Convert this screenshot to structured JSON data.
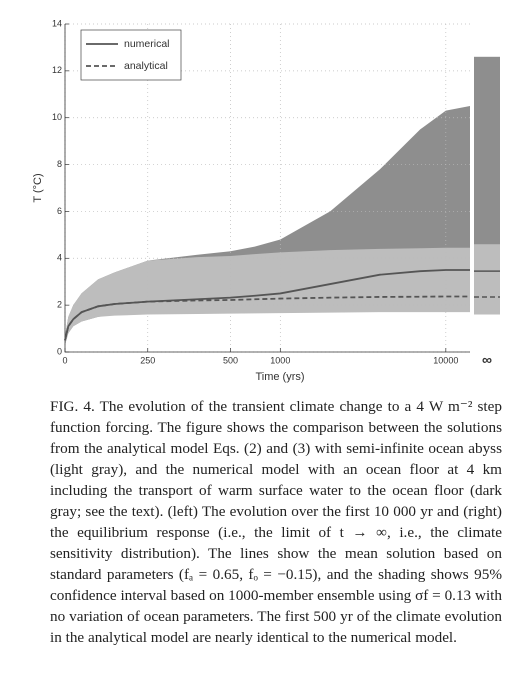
{
  "chart_data": {
    "type": "line",
    "xlabel": "Time (yrs)",
    "ylabel": "T (°C)",
    "xscale": "linear-then-log",
    "xbreak": 500,
    "x": [
      0,
      10,
      25,
      50,
      100,
      150,
      250,
      400,
      500,
      700,
      1000,
      2000,
      4000,
      7000,
      10000,
      14000
    ],
    "xlim": [
      0,
      14000
    ],
    "xticks": [
      0,
      250,
      500,
      1000,
      10000
    ],
    "ylim": [
      0,
      14
    ],
    "yticks": [
      0,
      2,
      4,
      6,
      8,
      10,
      12,
      14
    ],
    "grid": true,
    "legend": "upper left",
    "equilibrium_label": "∞",
    "series": [
      {
        "name": "numerical",
        "color": "#555555",
        "dashed": false,
        "values": [
          0.5,
          1.1,
          1.4,
          1.7,
          1.95,
          2.05,
          2.15,
          2.25,
          2.32,
          2.4,
          2.5,
          2.9,
          3.3,
          3.45,
          3.5,
          3.5
        ],
        "band_lower": [
          0.3,
          0.8,
          1.1,
          1.3,
          1.5,
          1.6,
          1.65,
          1.7,
          1.75,
          1.8,
          1.85,
          1.95,
          2.0,
          2.0,
          2.0,
          2.0
        ],
        "band_upper": [
          0.7,
          1.5,
          2.0,
          2.5,
          3.1,
          3.4,
          3.9,
          4.15,
          4.3,
          4.5,
          4.8,
          6.0,
          7.8,
          9.5,
          10.3,
          10.5
        ],
        "band_color": "#8e8e8e",
        "equilibrium": 3.45,
        "equilibrium_band": [
          2.0,
          12.6
        ]
      },
      {
        "name": "analytical",
        "color": "#555555",
        "dashed": true,
        "values": [
          0.5,
          1.1,
          1.4,
          1.7,
          1.95,
          2.05,
          2.15,
          2.2,
          2.22,
          2.25,
          2.28,
          2.32,
          2.35,
          2.36,
          2.37,
          2.37
        ],
        "band_lower": [
          0.3,
          0.8,
          1.1,
          1.3,
          1.5,
          1.55,
          1.6,
          1.62,
          1.64,
          1.65,
          1.66,
          1.68,
          1.7,
          1.7,
          1.7,
          1.7
        ],
        "band_upper": [
          0.7,
          1.5,
          2.0,
          2.5,
          3.1,
          3.4,
          3.9,
          4.05,
          4.1,
          4.18,
          4.25,
          4.35,
          4.4,
          4.43,
          4.45,
          4.45
        ],
        "band_color": "#bdbdbd",
        "equilibrium": 2.35,
        "equilibrium_band": [
          1.6,
          4.6
        ]
      }
    ]
  },
  "caption": "FIG. 4. The evolution of the transient climate change to a 4 W m⁻² step function forcing. The figure shows the comparison between the solutions from the analytical model Eqs. (2) and (3) with semi-infinite ocean abyss (light gray), and the numerical model with an ocean floor at 4 km including the transport of warm surface water to the ocean floor (dark gray; see the text). (left) The evolution over the first 10 000 yr and (right) the equilibrium response (i.e., the limit of t → ∞, i.e., the climate sensitivity distribution). The lines show the mean solution based on standard parameters (fₐ = 0.65, fₒ = −0.15), and the shading shows 95% confidence interval based on 1000-member ensemble using σf = 0.13 with no variation of ocean parameters. The first 500 yr of the climate evolution in the analytical model are nearly identical to the numerical model."
}
